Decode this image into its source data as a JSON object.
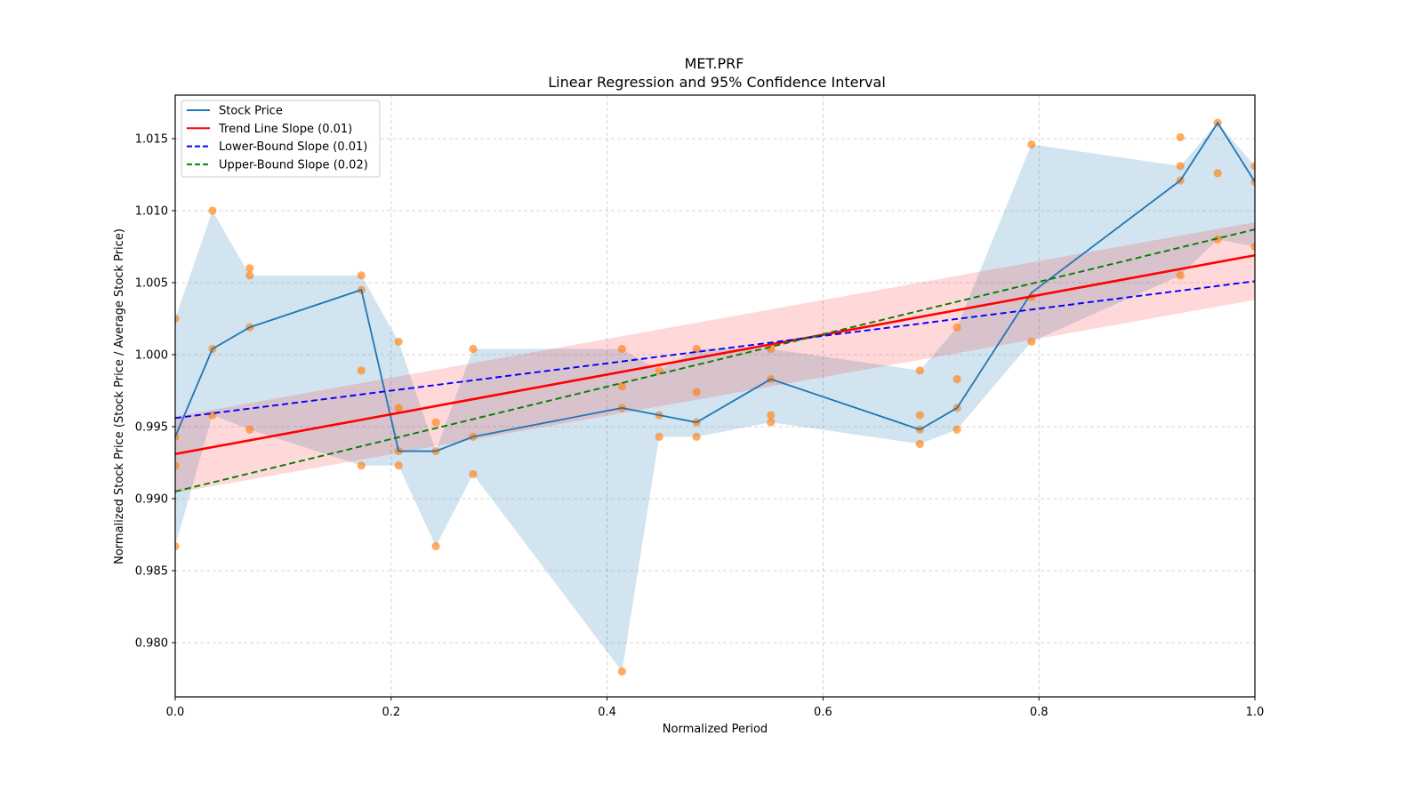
{
  "chart_data": {
    "type": "line",
    "title": "MET.PRF",
    "subtitle": "Linear Regression and 95% Confidence Interval",
    "xlabel": "Normalized Period",
    "ylabel": "Normalized Stock Price (Stock Price / Average Stock Price)",
    "xlim": [
      0.0,
      1.0
    ],
    "ylim": [
      0.9761,
      1.0182
    ],
    "xticks": [
      0.0,
      0.2,
      0.4,
      0.6,
      0.8,
      1.0
    ],
    "xtick_labels": [
      "0.0",
      "0.2",
      "0.4",
      "0.6",
      "0.8",
      "1.0"
    ],
    "yticks": [
      0.98,
      0.985,
      0.99,
      0.995,
      1.0,
      1.005,
      1.01,
      1.015
    ],
    "ytick_labels": [
      "0.980",
      "0.985",
      "0.990",
      "0.995",
      "1.000",
      "1.005",
      "1.010",
      "1.015"
    ],
    "grid": true,
    "legend_position": "top-left",
    "colors": {
      "stock": "#1f77b4",
      "band": "#1f77b4",
      "scatter": "#ff7f0e",
      "trend": "#ff0000",
      "trend_ci": "#ff0000",
      "lower": "#0000ff",
      "upper": "#008000",
      "grid": "#b0b0b0"
    },
    "legend": [
      {
        "label": "Stock Price",
        "style": "solid",
        "color": "#1f77b4"
      },
      {
        "label": "Trend Line Slope (0.01)",
        "style": "solid",
        "color": "#ff0000"
      },
      {
        "label": "Lower-Bound Slope (0.01)",
        "style": "dashed",
        "color": "#0000ff"
      },
      {
        "label": "Upper-Bound Slope (0.02)",
        "style": "dashed",
        "color": "#008000"
      }
    ],
    "stock_price": {
      "x": [
        0.0,
        0.0345,
        0.069,
        0.1724,
        0.2069,
        0.2414,
        0.2759,
        0.4138,
        0.4483,
        0.4828,
        0.5517,
        0.6897,
        0.7241,
        0.7931,
        0.931,
        0.9655,
        1.0
      ],
      "y": [
        0.9943,
        1.0004,
        1.0019,
        1.0045,
        0.9933,
        0.9933,
        0.9943,
        0.9963,
        0.9958,
        0.9953,
        0.9983,
        0.9948,
        0.9963,
        1.0043,
        1.0121,
        1.0161,
        1.012
      ]
    },
    "range_band": {
      "x": [
        0.0,
        0.0345,
        0.069,
        0.1724,
        0.2069,
        0.2414,
        0.2759,
        0.4138,
        0.4483,
        0.4828,
        0.5517,
        0.6897,
        0.7241,
        0.7931,
        0.931,
        0.9655,
        1.0
      ],
      "low": [
        0.9867,
        0.9958,
        0.9948,
        0.9923,
        0.9923,
        0.9867,
        0.9917,
        0.978,
        0.9943,
        0.9943,
        0.9953,
        0.9938,
        0.9948,
        1.0009,
        1.0055,
        1.008,
        1.0075
      ],
      "high": [
        1.0025,
        1.01,
        1.0055,
        1.0055,
        1.0009,
        0.9933,
        1.0004,
        1.0004,
        0.9989,
        1.0004,
        1.0004,
        0.9989,
        1.0019,
        1.0146,
        1.0131,
        1.0161,
        1.0131
      ]
    },
    "scatter_points": [
      [
        0.0,
        1.0025
      ],
      [
        0.0,
        0.9943
      ],
      [
        0.0,
        0.9923
      ],
      [
        0.0,
        0.9867
      ],
      [
        0.0345,
        1.01
      ],
      [
        0.0345,
        1.0004
      ],
      [
        0.0345,
        0.9958
      ],
      [
        0.069,
        1.006
      ],
      [
        0.069,
        1.0055
      ],
      [
        0.069,
        1.0019
      ],
      [
        0.069,
        0.9948
      ],
      [
        0.1724,
        1.0055
      ],
      [
        0.1724,
        1.0045
      ],
      [
        0.1724,
        0.9989
      ],
      [
        0.1724,
        0.9923
      ],
      [
        0.2069,
        1.0009
      ],
      [
        0.2069,
        0.9963
      ],
      [
        0.2069,
        0.9933
      ],
      [
        0.2069,
        0.9923
      ],
      [
        0.2414,
        0.9953
      ],
      [
        0.2414,
        0.9933
      ],
      [
        0.2414,
        0.9867
      ],
      [
        0.2759,
        1.0004
      ],
      [
        0.2759,
        0.9943
      ],
      [
        0.2759,
        0.9917
      ],
      [
        0.4138,
        1.0004
      ],
      [
        0.4138,
        0.9978
      ],
      [
        0.4138,
        0.9963
      ],
      [
        0.4138,
        0.978
      ],
      [
        0.4483,
        0.9989
      ],
      [
        0.4483,
        0.9958
      ],
      [
        0.4483,
        0.9943
      ],
      [
        0.4828,
        1.0004
      ],
      [
        0.4828,
        0.9974
      ],
      [
        0.4828,
        0.9953
      ],
      [
        0.4828,
        0.9943
      ],
      [
        0.5517,
        1.0004
      ],
      [
        0.5517,
        0.9983
      ],
      [
        0.5517,
        0.9958
      ],
      [
        0.5517,
        0.9953
      ],
      [
        0.6897,
        0.9989
      ],
      [
        0.6897,
        0.9958
      ],
      [
        0.6897,
        0.9948
      ],
      [
        0.6897,
        0.9938
      ],
      [
        0.7241,
        1.0019
      ],
      [
        0.7241,
        0.9983
      ],
      [
        0.7241,
        0.9963
      ],
      [
        0.7241,
        0.9948
      ],
      [
        0.7931,
        1.0146
      ],
      [
        0.7931,
        1.004
      ],
      [
        0.7931,
        1.0009
      ],
      [
        0.931,
        1.0151
      ],
      [
        0.931,
        1.0131
      ],
      [
        0.931,
        1.0121
      ],
      [
        0.931,
        1.0055
      ],
      [
        0.9655,
        1.0161
      ],
      [
        0.9655,
        1.0126
      ],
      [
        0.9655,
        1.008
      ],
      [
        1.0,
        1.0131
      ],
      [
        1.0,
        1.012
      ],
      [
        1.0,
        1.0075
      ]
    ],
    "trend_line": {
      "x": [
        0.0,
        1.0
      ],
      "y": [
        0.9931,
        1.0069
      ]
    },
    "trend_ci": {
      "x": [
        0.0,
        1.0
      ],
      "low": [
        0.9904,
        1.0038
      ],
      "high": [
        0.9957,
        1.0092
      ]
    },
    "lower_bound_line": {
      "x": [
        0.0,
        1.0
      ],
      "y": [
        0.9956,
        1.0051
      ]
    },
    "upper_bound_line": {
      "x": [
        0.0,
        1.0
      ],
      "y": [
        0.9905,
        1.0087
      ]
    }
  }
}
